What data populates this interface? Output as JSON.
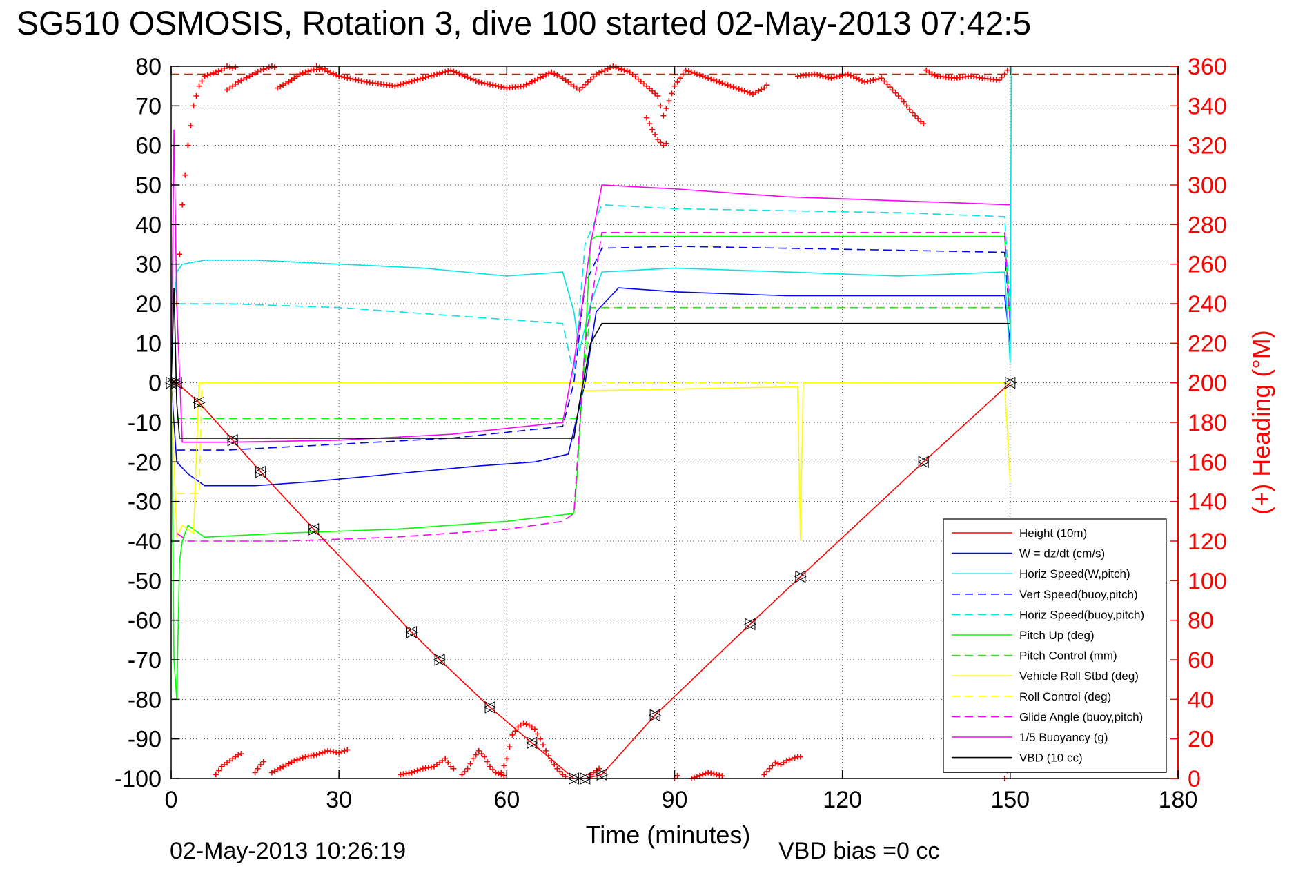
{
  "chart_data": {
    "type": "line",
    "title": "SG510 OSMOSIS, Rotation 3, dive 100 started 02-May-2013 07:42:5",
    "xlabel": "Time (minutes)",
    "ylabel": "",
    "y2label": "(+) Heading (°M)",
    "xlim": [
      0,
      180
    ],
    "ylim": [
      -100,
      80
    ],
    "y2lim": [
      0,
      360
    ],
    "xticks": [
      "0",
      "30",
      "60",
      "90",
      "120",
      "150",
      "180"
    ],
    "yticks": [
      "80",
      "70",
      "60",
      "50",
      "40",
      "30",
      "20",
      "10",
      "0",
      "-10",
      "-20",
      "-30",
      "-40",
      "-50",
      "-60",
      "-70",
      "-80",
      "-90",
      "-100"
    ],
    "y2ticks": [
      "360",
      "340",
      "320",
      "300",
      "280",
      "260",
      "240",
      "220",
      "200",
      "180",
      "160",
      "140",
      "120",
      "100",
      "80",
      "60",
      "40",
      "20",
      "0"
    ],
    "grid": true,
    "legend_position": "bottom-right",
    "footer_left": "02-May-2013 10:26:19",
    "footer_right": "VBD bias =0 cc",
    "colors": {
      "heading": "#ff0000",
      "tick_right": "#ff0000",
      "grid": "#555555"
    },
    "series": [
      {
        "name": "Height (10m)",
        "color": "#ff0000",
        "dash": "solid",
        "x": [
          0,
          1,
          5,
          11,
          16,
          25.5,
          43,
          48,
          57,
          64.5,
          72,
          74,
          77,
          86.5,
          103.5,
          112.5,
          134.5,
          150
        ],
        "y": [
          0,
          0,
          -5,
          -14.5,
          -22.5,
          -37,
          -63,
          -70,
          -82,
          -91,
          -100,
          -100,
          -99,
          -84,
          -61,
          -49,
          -20,
          0
        ],
        "markers": true
      },
      {
        "name": "W = dz/dt (cm/s)",
        "color": "#0000ff",
        "dash": "solid",
        "x": [
          0,
          1,
          3,
          6,
          15,
          25,
          40,
          55,
          65,
          71,
          72,
          74,
          76,
          80,
          90,
          110,
          130,
          149,
          150
        ],
        "y": [
          0,
          -20,
          -23,
          -26,
          -26,
          -25,
          -23,
          -21,
          -20,
          -18,
          -12,
          0,
          18,
          24,
          23,
          22,
          22,
          22,
          10
        ]
      },
      {
        "name": "Horiz Speed(W,pitch)",
        "color": "#00e5e5",
        "dash": "solid",
        "x": [
          0,
          0.5,
          1,
          2,
          6,
          15,
          30,
          45,
          60,
          70,
          72,
          73,
          75,
          77,
          90,
          110,
          130,
          149,
          150,
          150.2
        ],
        "y": [
          0,
          20,
          28,
          30,
          31,
          31,
          30,
          29,
          27,
          28,
          18,
          8,
          20,
          28,
          29,
          28,
          27,
          28,
          5,
          80
        ]
      },
      {
        "name": "Vert Speed(buoy,pitch)",
        "color": "#0000ff",
        "dash": "dashed",
        "x": [
          1,
          10,
          30,
          50,
          70,
          72,
          74,
          77,
          90,
          110,
          130,
          149,
          150
        ],
        "y": [
          -17,
          -17,
          -15.5,
          -14,
          -11,
          0,
          25,
          34,
          34.5,
          34,
          33.5,
          33,
          15
        ]
      },
      {
        "name": "Horiz Speed(buoy,pitch)",
        "color": "#00e5e5",
        "dash": "dashed",
        "x": [
          1,
          10,
          30,
          50,
          70,
          72,
          74,
          77,
          90,
          110,
          130,
          149,
          150
        ],
        "y": [
          20,
          20,
          19,
          17,
          15,
          2,
          35,
          45,
          44,
          43.5,
          43,
          42,
          20
        ]
      },
      {
        "name": "Pitch Up (deg)",
        "color": "#00ff00",
        "dash": "solid",
        "x": [
          0,
          0.5,
          1,
          1.5,
          2,
          3,
          6,
          20,
          40,
          60,
          72,
          72.5,
          74,
          75,
          76,
          90,
          110,
          130,
          149,
          150
        ],
        "y": [
          0,
          -70,
          -80,
          -45,
          -40,
          -36,
          -39,
          -38,
          -37,
          -35,
          -33,
          -25,
          10,
          36,
          37,
          37,
          37,
          37,
          37,
          15
        ]
      },
      {
        "name": "Pitch Control (mm)",
        "color": "#00ff00",
        "dash": "dashed",
        "x": [
          1,
          72,
          73,
          75,
          150
        ],
        "y": [
          -9,
          -9,
          -9,
          19,
          19
        ]
      },
      {
        "name": "Vehicle Roll Stbd (deg)",
        "color": "#ffff00",
        "dash": "solid",
        "x": [
          0,
          1,
          2,
          4,
          5,
          7,
          72,
          73,
          74,
          75,
          112,
          112.5,
          113,
          149,
          150
        ],
        "y": [
          0,
          -39,
          -36,
          -38,
          0,
          0,
          0,
          0,
          -2,
          -2,
          -1,
          -40,
          0,
          0,
          -25
        ]
      },
      {
        "name": "Roll Control (deg)",
        "color": "#ffff00",
        "dash": "dashed",
        "x": [
          1,
          5,
          5.5,
          150
        ],
        "y": [
          -28,
          -28,
          0,
          0
        ]
      },
      {
        "name": "Glide Angle (buoy,pitch)",
        "color": "#ff00ff",
        "dash": "dashed",
        "x": [
          1,
          3,
          20,
          40,
          60,
          70,
          72,
          74,
          77,
          90,
          110,
          130,
          149,
          150
        ],
        "y": [
          -38,
          -40,
          -40,
          -39,
          -37,
          -35,
          -33,
          10,
          38,
          38,
          38,
          38,
          38,
          15
        ]
      },
      {
        "name": "1/5 Buoyancy (g)",
        "color": "#ff00ff",
        "dash": "solid",
        "x": [
          0,
          0.5,
          1,
          2,
          10,
          30,
          50,
          70,
          72,
          75,
          77,
          90,
          110,
          130,
          150
        ],
        "y": [
          0,
          64,
          20,
          -15,
          -15,
          -14.5,
          -13,
          -10,
          5,
          35,
          50,
          49,
          47,
          46,
          45
        ]
      },
      {
        "name": "VBD (10 cc)",
        "color": "#000000",
        "dash": "solid",
        "x": [
          0,
          0.5,
          1,
          1.5,
          72,
          73,
          75,
          77,
          150
        ],
        "y": [
          0,
          24,
          -5,
          -14,
          -14,
          -5,
          10,
          15,
          15
        ]
      }
    ],
    "reference_lines": [
      {
        "axis": "y2",
        "value": 356,
        "color": "#ff0000",
        "dash": "dashed"
      }
    ],
    "heading_segments": [
      {
        "x": [
          0.5,
          1,
          2,
          3,
          3.5,
          4,
          5,
          6,
          7,
          8,
          9,
          10,
          11,
          12
        ],
        "y": [
          200,
          240,
          290,
          320,
          330,
          340,
          350,
          355,
          356,
          357,
          358,
          360,
          359,
          360
        ]
      },
      {
        "x": [
          10,
          12,
          14,
          16,
          18,
          19
        ],
        "y": [
          348,
          352,
          355,
          358,
          360,
          359
        ]
      },
      {
        "x": [
          19,
          21,
          23,
          25,
          28
        ],
        "y": [
          349,
          352,
          356,
          358,
          359
        ]
      },
      {
        "x": [
          26,
          30,
          35,
          40,
          45,
          50,
          55,
          60,
          63,
          68,
          70,
          73,
          76,
          79,
          82,
          85,
          87,
          88,
          90,
          92,
          95,
          98,
          100,
          102,
          104,
          106,
          107
        ],
        "y": [
          360,
          355,
          352,
          350,
          354,
          358,
          352,
          349,
          350,
          357,
          354,
          348,
          356,
          360,
          357,
          350,
          345,
          335,
          350,
          358,
          355,
          352,
          350,
          348,
          346,
          349,
          352
        ]
      },
      {
        "x": [
          85,
          86,
          87,
          88,
          89
        ],
        "y": [
          334,
          328,
          323,
          320,
          322
        ]
      },
      {
        "x": [
          112,
          115,
          118,
          121,
          124,
          127,
          130,
          131,
          132,
          133,
          134,
          135
        ],
        "y": [
          355,
          356,
          354,
          356,
          352,
          354,
          345,
          342,
          338,
          335,
          332,
          330
        ]
      },
      {
        "x": [
          135,
          136,
          137,
          140,
          143,
          145,
          148,
          149,
          150
        ],
        "y": [
          358,
          356,
          355,
          354,
          355,
          354,
          353,
          356,
          360
        ]
      },
      {
        "x": [
          8,
          9,
          10,
          11,
          12,
          13
        ],
        "y": [
          2,
          6,
          8,
          10,
          12,
          13
        ]
      },
      {
        "x": [
          15,
          16,
          17
        ],
        "y": [
          3,
          7,
          10
        ]
      },
      {
        "x": [
          18,
          20,
          22,
          24,
          26,
          28,
          30,
          32
        ],
        "y": [
          3,
          6,
          9,
          11,
          12,
          14,
          13,
          15
        ]
      },
      {
        "x": [
          41,
          43,
          45,
          47,
          48,
          49,
          50,
          51
        ],
        "y": [
          2,
          3,
          5,
          6,
          8,
          10,
          6,
          4
        ]
      },
      {
        "x": [
          52,
          53,
          54,
          55,
          56,
          57,
          58,
          59,
          60
        ],
        "y": [
          2,
          5,
          10,
          14,
          11,
          6,
          3,
          2,
          1
        ]
      },
      {
        "x": [
          59,
          60,
          61,
          62,
          63,
          64,
          65,
          66,
          67,
          68,
          69,
          70,
          71
        ],
        "y": [
          3,
          10,
          22,
          26,
          28,
          27,
          25,
          20,
          14,
          9,
          5,
          2,
          0
        ]
      },
      {
        "x": [
          75,
          76,
          77
        ],
        "y": [
          2,
          4,
          6
        ]
      },
      {
        "x": [
          90,
          91
        ],
        "y": [
          0,
          3
        ]
      },
      {
        "x": [
          93,
          96,
          99
        ],
        "y": [
          0,
          3,
          1
        ]
      },
      {
        "x": [
          106,
          107,
          108,
          109,
          110,
          111,
          112,
          113
        ],
        "y": [
          2,
          5,
          8,
          7,
          9,
          10,
          11,
          11
        ]
      },
      {
        "x": [
          149,
          149.5,
          150
        ],
        "y": [
          0,
          4,
          2
        ]
      }
    ]
  }
}
